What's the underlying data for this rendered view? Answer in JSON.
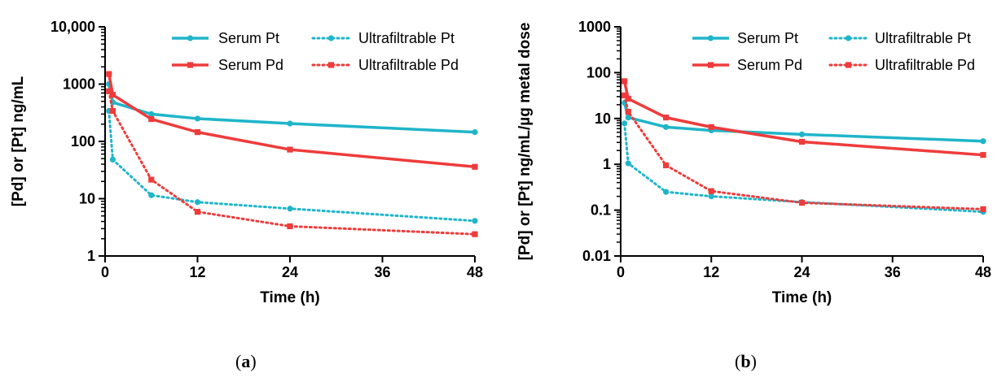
{
  "colors": {
    "pt": "#1fb5c9",
    "pd": "#ef3b3b"
  },
  "chart_data": [
    {
      "type": "line",
      "panel_label": "a",
      "xlabel": "Time (h)",
      "ylabel": "[Pd] or [Pt] ng/mL",
      "yscale": "log",
      "xlim": [
        0,
        48
      ],
      "ylim": [
        1,
        10000
      ],
      "xticks": [
        0,
        12,
        24,
        36,
        48
      ],
      "yticks": [
        1,
        10,
        100,
        1000,
        10000
      ],
      "ytick_labels": [
        "1",
        "10",
        "100",
        "1000",
        "10,000"
      ],
      "legend_position": "top-right",
      "series": [
        {
          "name": "Serum Pt",
          "color": "#1fb5c9",
          "style": "solid",
          "marker": "circle",
          "x": [
            0.5,
            1,
            6,
            12,
            24,
            48
          ],
          "y": [
            1000,
            480,
            300,
            250,
            205,
            145
          ]
        },
        {
          "name": "Serum Pd",
          "color": "#ef3b3b",
          "style": "solid",
          "marker": "square",
          "x": [
            0.5,
            1,
            6,
            12,
            24,
            48
          ],
          "y": [
            1500,
            650,
            245,
            145,
            72,
            36
          ]
        },
        {
          "name": "Ultrafiltrable Pt",
          "color": "#1fb5c9",
          "style": "dotted",
          "marker": "circle",
          "x": [
            0.5,
            1,
            6,
            12,
            24,
            48
          ],
          "y": [
            340,
            48,
            11.5,
            8.7,
            6.7,
            4.1
          ]
        },
        {
          "name": "Ultrafiltrable Pd",
          "color": "#ef3b3b",
          "style": "dotted",
          "marker": "square",
          "x": [
            0.5,
            1,
            6,
            12,
            24,
            48
          ],
          "y": [
            750,
            340,
            21.5,
            5.9,
            3.3,
            2.4
          ]
        }
      ]
    },
    {
      "type": "line",
      "panel_label": "b",
      "xlabel": "Time (h)",
      "ylabel": "[Pd] or [Pt] ng/mL/µg metal dose",
      "yscale": "log",
      "xlim": [
        0,
        48
      ],
      "ylim": [
        0.01,
        1000
      ],
      "xticks": [
        0,
        12,
        24,
        36,
        48
      ],
      "yticks": [
        0.01,
        0.1,
        1,
        10,
        100,
        1000
      ],
      "ytick_labels": [
        "0.01",
        "0.1",
        "1",
        "10",
        "100",
        "1000"
      ],
      "legend_position": "top-right",
      "series": [
        {
          "name": "Serum Pt",
          "color": "#1fb5c9",
          "style": "solid",
          "marker": "circle",
          "x": [
            0.5,
            1,
            6,
            12,
            24,
            48
          ],
          "y": [
            22,
            10.5,
            6.5,
            5.5,
            4.5,
            3.2
          ]
        },
        {
          "name": "Serum Pd",
          "color": "#ef3b3b",
          "style": "solid",
          "marker": "square",
          "x": [
            0.5,
            1,
            6,
            12,
            24,
            48
          ],
          "y": [
            65,
            27,
            10.5,
            6.5,
            3.1,
            1.6
          ]
        },
        {
          "name": "Ultrafiltrable Pt",
          "color": "#1fb5c9",
          "style": "dotted",
          "marker": "circle",
          "x": [
            0.5,
            1,
            6,
            12,
            24,
            48
          ],
          "y": [
            7.8,
            1.05,
            0.25,
            0.2,
            0.15,
            0.092
          ]
        },
        {
          "name": "Ultrafiltrable Pd",
          "color": "#ef3b3b",
          "style": "dotted",
          "marker": "square",
          "x": [
            0.5,
            1,
            6,
            12,
            24,
            48
          ],
          "y": [
            32,
            14,
            0.95,
            0.26,
            0.145,
            0.105
          ]
        }
      ]
    }
  ]
}
